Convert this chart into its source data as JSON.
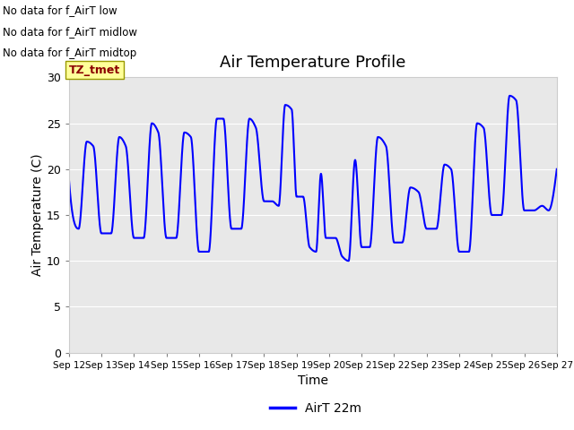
{
  "title": "Air Temperature Profile",
  "xlabel": "Time",
  "ylabel": "Air Temperature (C)",
  "ylim": [
    0,
    30
  ],
  "yticks": [
    0,
    5,
    10,
    15,
    20,
    25,
    30
  ],
  "line_color": "blue",
  "line_width": 1.5,
  "background_color": "#e8e8e8",
  "legend_label": "AirT 22m",
  "annotations_outside": [
    "No data for f_AirT low",
    "No data for f_AirT midlow",
    "No data for f_AirT midtop"
  ],
  "tz_label": "TZ_tmet",
  "x_tick_labels": [
    "Sep 12",
    "Sep 13",
    "Sep 14",
    "Sep 15",
    "Sep 16",
    "Sep 17",
    "Sep 18",
    "Sep 19",
    "Sep 20",
    "Sep 21",
    "Sep 22",
    "Sep 23",
    "Sep 24",
    "Sep 25",
    "Sep 26",
    "Sep 27"
  ],
  "figsize": [
    6.4,
    4.8
  ],
  "dpi": 100
}
